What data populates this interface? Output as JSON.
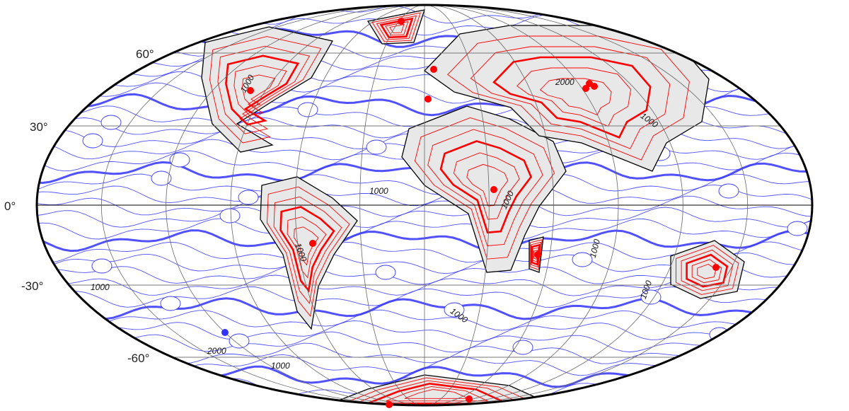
{
  "map": {
    "projection": "mollweide",
    "colors": {
      "land": "#e8e8e8",
      "positive": "#ff0000",
      "negative": "#3333ff",
      "coast": "#000000"
    },
    "latitude_labels": [
      "60°",
      "30°",
      "0°",
      "-30°",
      "-60°"
    ],
    "contour_labels": [
      "1000",
      "2000",
      "1000",
      "1000",
      "1000",
      "1000",
      "1000",
      "1000",
      "1000",
      "2000",
      "1000",
      "1000"
    ],
    "red_markers": 14,
    "blue_markers": 1
  }
}
